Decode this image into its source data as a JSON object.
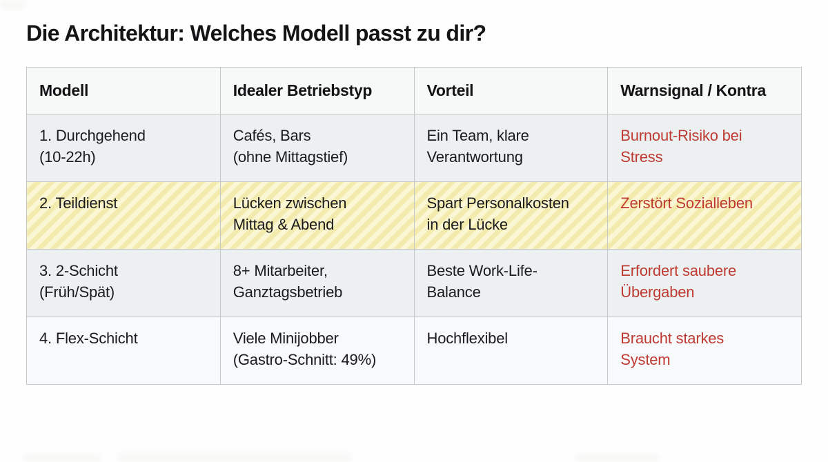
{
  "page": {
    "title": "Die Architektur: Welches Modell passt zu dir?"
  },
  "colors": {
    "warning_text": "#be3a33",
    "highlight_stripe_light": "#fbf6d3",
    "highlight_stripe_dark": "#f3ebad",
    "row_gray": "#edf0f0",
    "row_light": "#f8f9fa",
    "header_bg": "#f7f9f9",
    "border": "#c4c8c8"
  },
  "table": {
    "headers": [
      "Modell",
      "Idealer Betriebstyp",
      "Vorteil",
      "Warnsignal / Kontra"
    ],
    "rows": [
      {
        "highlighted": false,
        "cells": [
          "1. Durchgehend\n(10-22h)",
          "Cafés, Bars\n(ohne Mittagstief)",
          "Ein Team, klare\nVerantwortung",
          "Burnout-Risiko bei\nStress"
        ]
      },
      {
        "highlighted": true,
        "cells": [
          "2. Teildienst",
          "Lücken zwischen\nMittag & Abend",
          "Spart Personalkosten\nin der Lücke",
          "Zerstört Sozialleben"
        ]
      },
      {
        "highlighted": false,
        "cells": [
          "3. 2-Schicht\n(Früh/Spät)",
          "8+ Mitarbeiter,\nGanztagsbetrieb",
          "Beste Work-Life-\nBalance",
          "Erfordert saubere\nÜbergaben"
        ]
      },
      {
        "highlighted": false,
        "cells": [
          "4. Flex-Schicht",
          "Viele Minijobber\n(Gastro-Schnitt: 49%)",
          "Hochflexibel",
          "Braucht starkes\nSystem"
        ]
      }
    ]
  }
}
